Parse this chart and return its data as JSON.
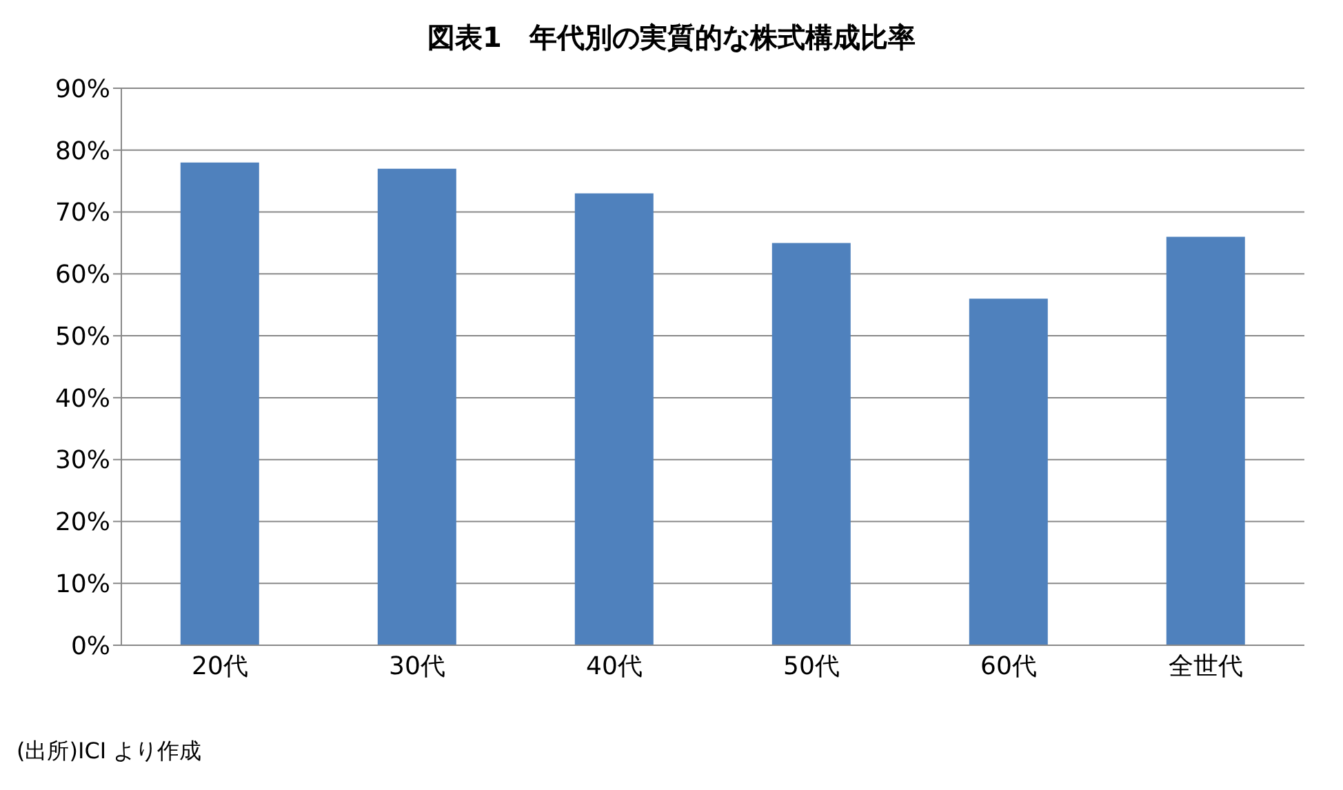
{
  "chart_data": {
    "type": "bar",
    "title": "図表1　年代別の実質的な株式構成比率",
    "categories": [
      "20代",
      "30代",
      "40代",
      "50代",
      "60代",
      "全世代"
    ],
    "values": [
      78,
      77,
      73,
      65,
      56,
      66
    ],
    "color": "#4f81bd",
    "ylim": [
      0,
      90
    ],
    "yticks": [
      {
        "value": 0,
        "label": "0%"
      },
      {
        "value": 10,
        "label": "10%"
      },
      {
        "value": 20,
        "label": "20%"
      },
      {
        "value": 30,
        "label": "30%"
      },
      {
        "value": 40,
        "label": "40%"
      },
      {
        "value": 50,
        "label": "50%"
      },
      {
        "value": 60,
        "label": "60%"
      },
      {
        "value": 70,
        "label": "70%"
      },
      {
        "value": 80,
        "label": "80%"
      },
      {
        "value": 90,
        "label": "90%"
      }
    ],
    "grid": "y",
    "annotations": [
      "(出所)ICI より作成"
    ]
  }
}
